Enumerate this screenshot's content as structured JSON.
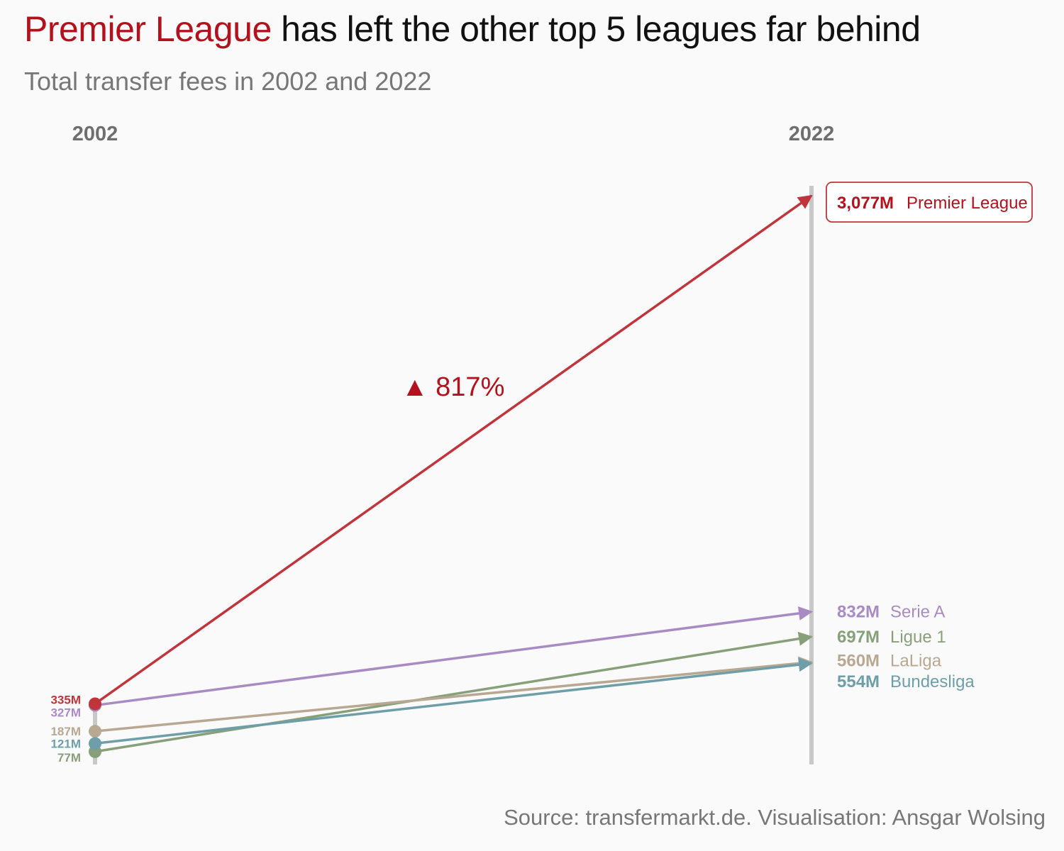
{
  "title": {
    "highlight": "Premier League",
    "rest": " has left the other top 5 leagues far behind"
  },
  "subtitle": "Total transfer fees in 2002 and 2022",
  "source": "Source: transfermarkt.de. Visualisation: Ansgar Wolsing",
  "colors": {
    "Premier League": "#c0343c",
    "Serie A": "#a98bc3",
    "Ligue 1": "#87a07a",
    "LaLiga": "#b8a892",
    "Bundesliga": "#6e9fa8",
    "axis": "#c8c8c8"
  },
  "chart_data": {
    "type": "slope",
    "x": [
      "2002",
      "2022"
    ],
    "unit": "M",
    "series": [
      {
        "name": "Premier League",
        "start": 335,
        "end": 3077,
        "start_label": "335M",
        "end_label": "3,077M",
        "boxed": true
      },
      {
        "name": "Serie A",
        "start": 327,
        "end": 832,
        "start_label": "327M",
        "end_label": "832M"
      },
      {
        "name": "Ligue 1",
        "start": 77,
        "end": 697,
        "start_label": "77M",
        "end_label": "697M"
      },
      {
        "name": "LaLiga",
        "start": 187,
        "end": 560,
        "start_label": "187M",
        "end_label": "560M"
      },
      {
        "name": "Bundesliga",
        "start": 121,
        "end": 554,
        "start_label": "121M",
        "end_label": "554M"
      }
    ],
    "annotation": {
      "series": "Premier League",
      "text": "▲ 817%"
    }
  }
}
